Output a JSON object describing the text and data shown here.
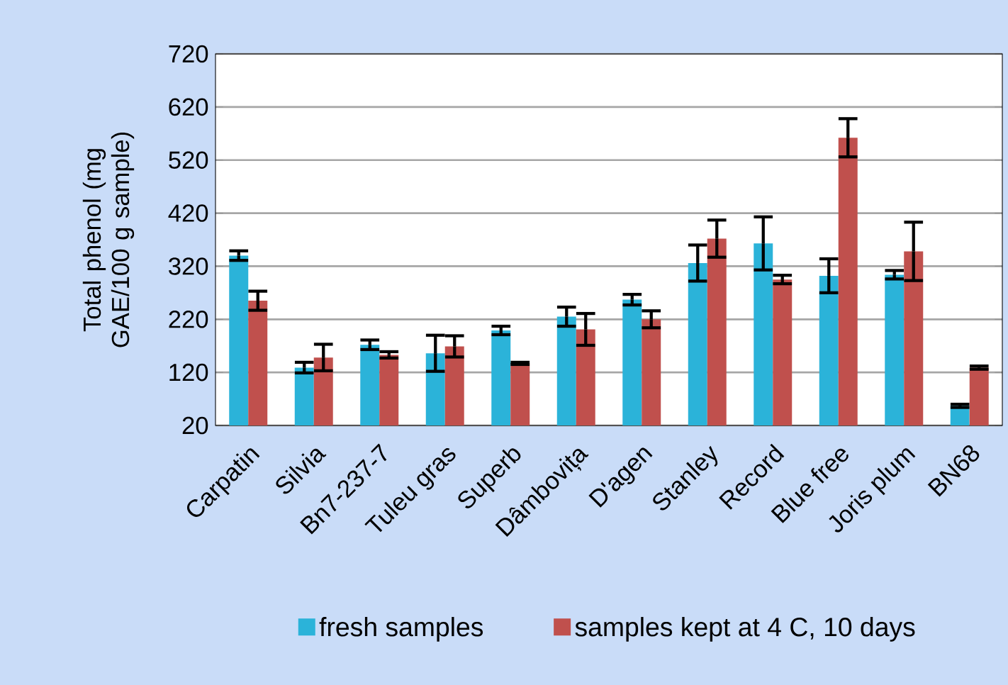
{
  "chart_data": {
    "type": "bar",
    "ylabel": "Total phenol (mg GAE/100 g sample)",
    "categories": [
      "Carpatin",
      "Silvia",
      "Bn7-237-7",
      "Tuleu gras",
      "Superb",
      "Dâmbovița",
      "D'agen",
      "Stanley",
      "Record",
      "Blue free",
      "Joris plum",
      "BN68"
    ],
    "series": [
      {
        "name": "fresh samples",
        "color": "#2bb3d9",
        "values": [
          340,
          129,
          172,
          156,
          199,
          225,
          257,
          326,
          363,
          302,
          304,
          57
        ],
        "errors": [
          9,
          10,
          9,
          34,
          8,
          18,
          10,
          34,
          50,
          32,
          8,
          3
        ]
      },
      {
        "name": "samples kept at 4 C, 10 days",
        "color": "#c0504d",
        "values": [
          255,
          148,
          153,
          169,
          137,
          201,
          220,
          372,
          295,
          562,
          348,
          129
        ],
        "errors": [
          18,
          25,
          6,
          20,
          2,
          30,
          16,
          35,
          8,
          36,
          55,
          3
        ]
      }
    ],
    "ylim": [
      20,
      720
    ],
    "yticks": [
      20,
      120,
      220,
      320,
      420,
      520,
      620,
      720
    ],
    "grid": "y",
    "legend": "bottom"
  }
}
